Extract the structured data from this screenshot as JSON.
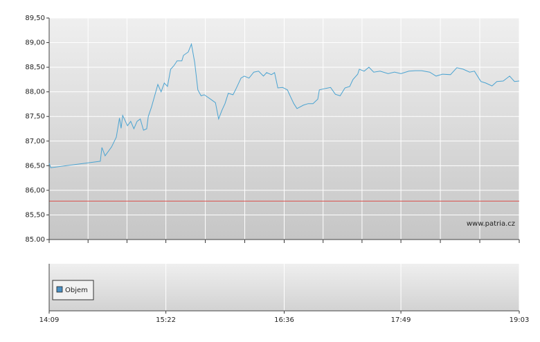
{
  "chart_data": [
    {
      "type": "line",
      "x": [
        "14:09",
        "14:10",
        "14:41",
        "14:42",
        "14:44",
        "14:48",
        "14:51",
        "14:53",
        "14:54",
        "14:55",
        "14:58",
        "15:00",
        "15:02",
        "15:04",
        "15:06",
        "15:08",
        "15:10",
        "15:11",
        "15:13",
        "15:15",
        "15:17",
        "15:19",
        "15:21",
        "15:23",
        "15:25",
        "15:27",
        "15:29",
        "15:32",
        "15:33",
        "15:36",
        "15:38",
        "15:40",
        "15:42",
        "15:44",
        "15:46",
        "15:50",
        "15:53",
        "15:55",
        "15:57",
        "15:59",
        "16:01",
        "16:04",
        "16:06",
        "16:09",
        "16:11",
        "16:14",
        "16:17",
        "16:20",
        "16:23",
        "16:25",
        "16:28",
        "16:30",
        "16:32",
        "16:35",
        "16:38",
        "16:40",
        "16:42",
        "16:44",
        "16:48",
        "16:51",
        "16:54",
        "16:57",
        "16:58",
        "17:02",
        "17:05",
        "17:08",
        "17:11",
        "17:14",
        "17:17",
        "17:19",
        "17:22",
        "17:23",
        "17:26",
        "17:29",
        "17:32",
        "17:36",
        "17:41",
        "17:45",
        "17:49",
        "17:54",
        "17:58",
        "18:02",
        "18:07",
        "18:11",
        "18:15",
        "18:20",
        "18:24",
        "18:28",
        "18:32",
        "18:35",
        "18:39",
        "18:42",
        "18:46",
        "18:49",
        "18:53",
        "18:57",
        "19:00",
        "19:03"
      ],
      "values": [
        86.55,
        86.46,
        86.59,
        86.87,
        86.7,
        86.88,
        87.08,
        87.47,
        87.26,
        87.52,
        87.31,
        87.4,
        87.25,
        87.4,
        87.45,
        87.22,
        87.25,
        87.5,
        87.69,
        87.92,
        88.15,
        88.0,
        88.18,
        88.11,
        88.46,
        88.53,
        88.63,
        88.63,
        88.74,
        88.81,
        88.97,
        88.6,
        88.04,
        87.92,
        87.94,
        87.85,
        87.78,
        87.45,
        87.62,
        87.76,
        87.97,
        87.94,
        88.07,
        88.28,
        88.32,
        88.28,
        88.4,
        88.42,
        88.32,
        88.39,
        88.35,
        88.39,
        88.08,
        88.09,
        88.04,
        87.9,
        87.76,
        87.66,
        87.73,
        87.76,
        87.76,
        87.85,
        88.04,
        88.07,
        88.09,
        87.95,
        87.92,
        88.08,
        88.11,
        88.25,
        88.36,
        88.46,
        88.42,
        88.5,
        88.4,
        88.42,
        88.37,
        88.4,
        88.37,
        88.42,
        88.43,
        88.43,
        88.4,
        88.32,
        88.36,
        88.35,
        88.49,
        88.46,
        88.4,
        88.42,
        88.21,
        88.18,
        88.12,
        88.21,
        88.22,
        88.32,
        88.21,
        88.22
      ],
      "color": "#4aa3d1",
      "xlim": [
        "14:09",
        "19:03"
      ],
      "xticks": [
        "14:09",
        "15:22",
        "16:36",
        "17:49",
        "19:03"
      ],
      "ylim": [
        85,
        89.5
      ],
      "yticks": [
        {
          "value": 85,
          "label": "85.00"
        },
        {
          "value": 85.5,
          "label": "85,50"
        },
        {
          "value": 86,
          "label": "86,00"
        },
        {
          "value": 86.5,
          "label": "86,50"
        },
        {
          "value": 87,
          "label": "87,00"
        },
        {
          "value": 87.5,
          "label": "87,50"
        },
        {
          "value": 88,
          "label": "88,00"
        },
        {
          "value": 88.5,
          "label": "88,50"
        },
        {
          "value": 89,
          "label": "89,00"
        },
        {
          "value": 89.5,
          "label": "89,50"
        }
      ],
      "reference_line": {
        "value": 85.78,
        "color": "#d9534f"
      },
      "watermark": "www.patria.cz",
      "grid": true
    },
    {
      "type": "bar",
      "series": [
        {
          "name": "Objem",
          "color": "#4a90c4",
          "values": []
        }
      ],
      "legend": "lower-left"
    }
  ]
}
